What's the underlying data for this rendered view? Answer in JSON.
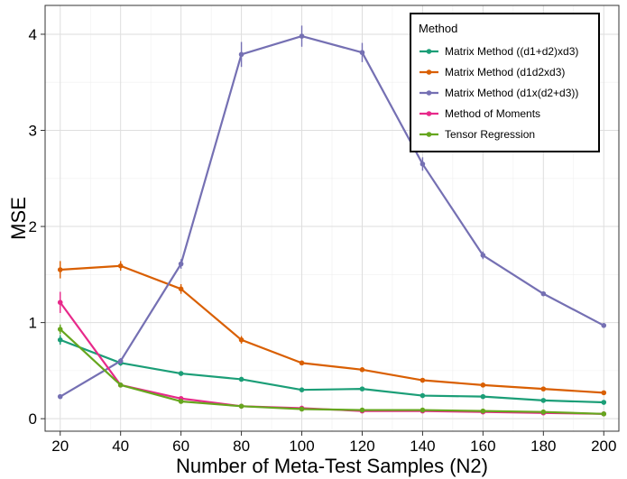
{
  "chart_data": {
    "type": "line",
    "xlabel": "Number of Meta-Test Samples (N2)",
    "ylabel": "MSE",
    "x": [
      20,
      40,
      60,
      80,
      100,
      120,
      140,
      160,
      180,
      200
    ],
    "xlim": [
      15,
      205
    ],
    "ylim": [
      -0.13,
      4.3
    ],
    "xticks": [
      20,
      40,
      60,
      80,
      100,
      120,
      140,
      160,
      180,
      200
    ],
    "yticks": [
      0,
      1,
      2,
      3,
      4
    ],
    "grid": true,
    "legend": {
      "title": "Method",
      "position": "top-right"
    },
    "series": [
      {
        "name": "Matrix Method ((d1+d2)xd3)",
        "color": "#1b9e77",
        "values": [
          0.82,
          0.58,
          0.47,
          0.41,
          0.3,
          0.31,
          0.24,
          0.23,
          0.19,
          0.17
        ],
        "errors": [
          0.05,
          0.03,
          0.02,
          0.01,
          0.01,
          0.01,
          0.01,
          0.01,
          0.01,
          0.01
        ]
      },
      {
        "name": "Matrix Method (d1d2xd3)",
        "color": "#d95f02",
        "values": [
          1.55,
          1.59,
          1.35,
          0.82,
          0.58,
          0.51,
          0.4,
          0.35,
          0.31,
          0.27
        ],
        "errors": [
          0.09,
          0.05,
          0.05,
          0.04,
          0.02,
          0.01,
          0.01,
          0.01,
          0.01,
          0.01
        ]
      },
      {
        "name": "Matrix Method (d1x(d2+d3))",
        "color": "#7570b3",
        "values": [
          0.23,
          0.6,
          1.61,
          3.79,
          3.98,
          3.81,
          2.65,
          1.7,
          1.3,
          0.97
        ],
        "errors": [
          0.01,
          0.03,
          0.05,
          0.13,
          0.11,
          0.1,
          0.07,
          0.04,
          0.02,
          0.02
        ]
      },
      {
        "name": "Method of Moments",
        "color": "#e7298a",
        "values": [
          1.21,
          0.35,
          0.21,
          0.13,
          0.11,
          0.08,
          0.08,
          0.07,
          0.06,
          0.05
        ],
        "errors": [
          0.11,
          0.02,
          0.01,
          0.01,
          0.01,
          0.01,
          0.01,
          0.01,
          0.01,
          0.01
        ]
      },
      {
        "name": "Tensor Regression",
        "color": "#66a61e",
        "values": [
          0.93,
          0.35,
          0.18,
          0.13,
          0.1,
          0.09,
          0.09,
          0.08,
          0.07,
          0.05
        ],
        "errors": [
          0.05,
          0.02,
          0.01,
          0.01,
          0.01,
          0.01,
          0.01,
          0.01,
          0.01,
          0.01
        ]
      }
    ]
  }
}
